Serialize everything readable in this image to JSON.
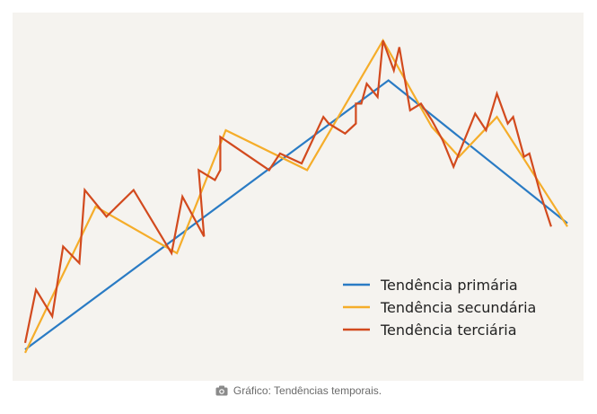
{
  "chart_data": {
    "type": "line",
    "title": "",
    "xlabel": "",
    "ylabel": "",
    "grid": false,
    "axes_visible": false,
    "legend_placement": "bottom-right",
    "xlim": [
      0,
      100
    ],
    "ylim": [
      0,
      100
    ],
    "series": [
      {
        "name": "Tendência primária",
        "color": "#2a7bc4",
        "x": [
          0,
          67,
          100
        ],
        "y": [
          4,
          85,
          42
        ]
      },
      {
        "name": "Tendência secundária",
        "color": "#f5ad2a",
        "x": [
          0,
          13,
          28,
          37,
          52,
          66,
          75,
          80,
          87,
          100
        ],
        "y": [
          3,
          47,
          33,
          70,
          58,
          97,
          71,
          62,
          74,
          41
        ]
      },
      {
        "name": "Tendência terciária",
        "color": "#d24a1e",
        "x": [
          0,
          2,
          5,
          7,
          10,
          11,
          11,
          15,
          20,
          27,
          29,
          33,
          32,
          35,
          36,
          36,
          45,
          47,
          51,
          55,
          56,
          58,
          59,
          61,
          61,
          62,
          63,
          65,
          66,
          68,
          69,
          71,
          73,
          75,
          77,
          79,
          83,
          85,
          87,
          89,
          90,
          92,
          93,
          95,
          97
        ],
        "y": [
          6,
          22,
          14,
          35,
          30,
          52,
          52,
          44,
          52,
          33,
          50,
          38,
          58,
          55,
          58,
          68,
          58,
          63,
          60,
          74,
          72,
          70,
          69,
          72,
          78,
          78,
          84,
          80,
          97,
          88,
          95,
          76,
          78,
          73,
          67,
          59,
          75,
          70,
          81,
          72,
          74,
          62,
          63,
          51,
          41
        ]
      }
    ]
  },
  "caption": {
    "icon": "camera-icon",
    "text": "Gráfico: Tendências temporais."
  }
}
